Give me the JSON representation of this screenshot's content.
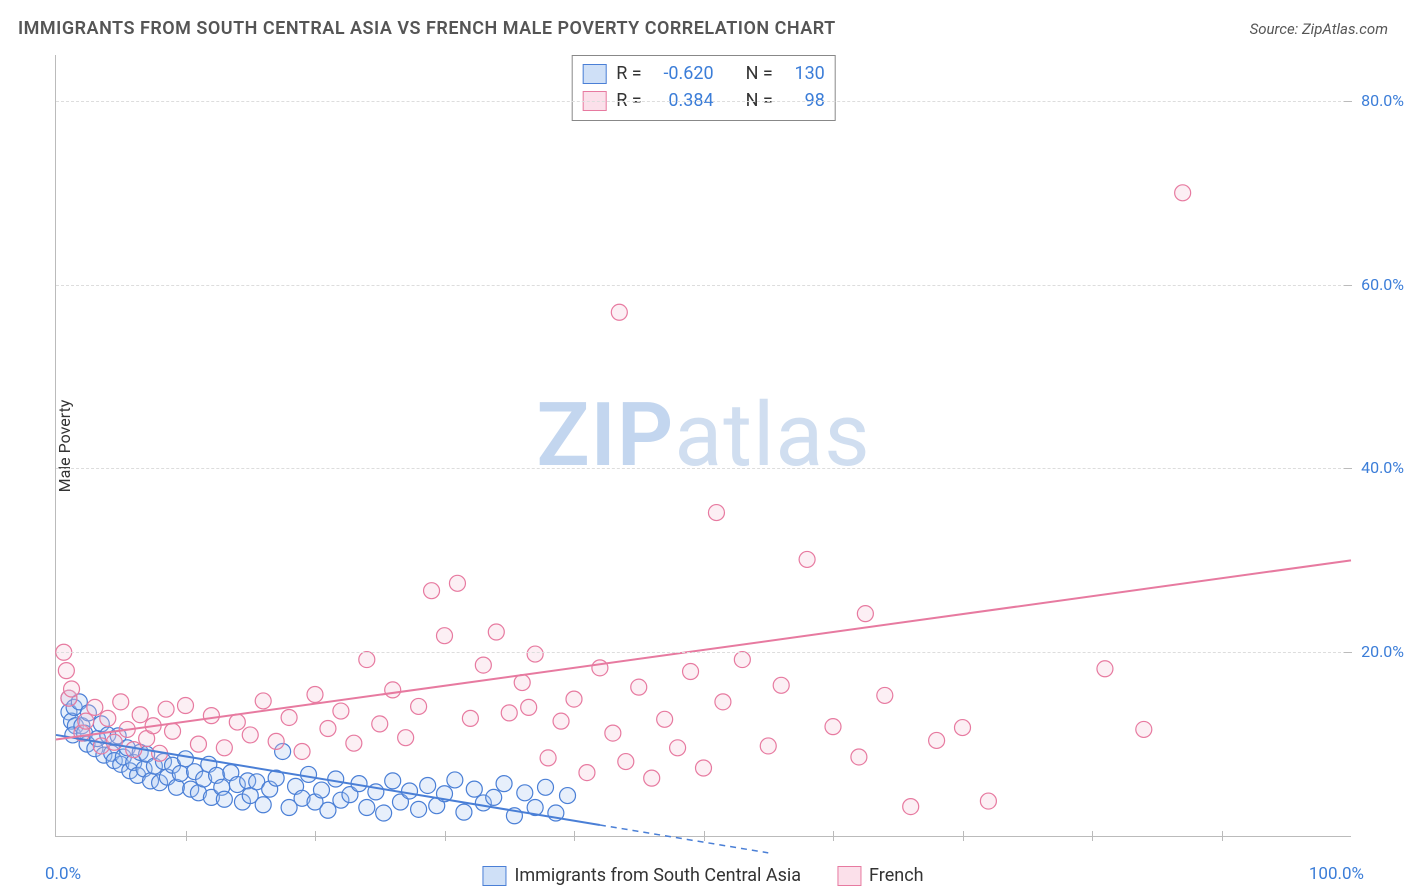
{
  "title": "IMMIGRANTS FROM SOUTH CENTRAL ASIA VS FRENCH MALE POVERTY CORRELATION CHART",
  "source": "Source: ZipAtlas.com",
  "watermark_a": "ZIP",
  "watermark_b": "atlas",
  "ylabel": "Male Poverty",
  "chart": {
    "type": "scatter",
    "xlim": [
      0,
      100
    ],
    "ylim": [
      0,
      85
    ],
    "x_min_label": "0.0%",
    "x_max_label": "100.0%",
    "y_ticks": [
      20,
      40,
      60,
      80
    ],
    "y_tick_labels": [
      "20.0%",
      "40.0%",
      "60.0%",
      "80.0%"
    ],
    "x_tick_step": 10,
    "background_color": "#ffffff",
    "grid_color": "#dddddd",
    "axis_color": "#bbbbbb",
    "tick_label_color": "#3b7dd8",
    "axis_label_color": "#333333",
    "point_radius": 8,
    "point_stroke_width": 1.2,
    "point_fill_opacity": 0.28,
    "trend_line_width": 2,
    "trend_dash_width": 1.5,
    "series": [
      {
        "key": "blue",
        "label": "Immigrants from South Central Asia",
        "color_stroke": "#4a7fd6",
        "color_fill": "#a9c5ef",
        "swatch_border": "#4a7fd6",
        "swatch_fill": "#cfe0f7",
        "R": "-0.620",
        "N": "130",
        "trend": {
          "x1": 0,
          "y1": 11,
          "x2": 42,
          "y2": 1.2,
          "dash_to_x": 55
        },
        "points": [
          [
            1,
            15
          ],
          [
            1,
            13.5
          ],
          [
            1.2,
            12.5
          ],
          [
            1.5,
            12
          ],
          [
            1.3,
            11
          ],
          [
            1.4,
            14
          ],
          [
            1.8,
            14.6
          ],
          [
            2,
            12
          ],
          [
            2.2,
            11.2
          ],
          [
            2.4,
            10
          ],
          [
            2.5,
            13.4
          ],
          [
            3,
            9.5
          ],
          [
            3.2,
            10.6
          ],
          [
            3.5,
            12.2
          ],
          [
            3.7,
            8.8
          ],
          [
            4,
            11
          ],
          [
            4.3,
            9
          ],
          [
            4.5,
            8.2
          ],
          [
            4.8,
            10.9
          ],
          [
            5,
            7.8
          ],
          [
            5.2,
            8.6
          ],
          [
            5.5,
            9.6
          ],
          [
            5.7,
            7.1
          ],
          [
            6,
            8
          ],
          [
            6.3,
            6.6
          ],
          [
            6.5,
            9.1
          ],
          [
            6.8,
            7.3
          ],
          [
            7,
            8.9
          ],
          [
            7.3,
            6
          ],
          [
            7.6,
            7.6
          ],
          [
            8,
            5.8
          ],
          [
            8.3,
            8.1
          ],
          [
            8.6,
            6.4
          ],
          [
            9,
            7.7
          ],
          [
            9.3,
            5.3
          ],
          [
            9.6,
            6.8
          ],
          [
            10,
            8.4
          ],
          [
            10.4,
            5.1
          ],
          [
            10.7,
            7
          ],
          [
            11,
            4.7
          ],
          [
            11.4,
            6.2
          ],
          [
            11.8,
            7.8
          ],
          [
            12,
            4.2
          ],
          [
            12.4,
            6.6
          ],
          [
            12.8,
            5.3
          ],
          [
            13,
            4
          ],
          [
            13.5,
            6.9
          ],
          [
            14,
            5.6
          ],
          [
            14.4,
            3.7
          ],
          [
            14.8,
            6
          ],
          [
            15,
            4.4
          ],
          [
            15.5,
            5.9
          ],
          [
            16,
            3.4
          ],
          [
            16.5,
            5.1
          ],
          [
            17,
            6.3
          ],
          [
            17.5,
            9.2
          ],
          [
            18,
            3.1
          ],
          [
            18.5,
            5.4
          ],
          [
            19,
            4.1
          ],
          [
            19.5,
            6.7
          ],
          [
            20,
            3.7
          ],
          [
            20.5,
            5
          ],
          [
            21,
            2.8
          ],
          [
            21.6,
            6.2
          ],
          [
            22,
            3.9
          ],
          [
            22.7,
            4.5
          ],
          [
            23.4,
            5.7
          ],
          [
            24,
            3.1
          ],
          [
            24.7,
            4.8
          ],
          [
            25.3,
            2.5
          ],
          [
            26,
            6
          ],
          [
            26.6,
            3.7
          ],
          [
            27.3,
            4.9
          ],
          [
            28,
            2.9
          ],
          [
            28.7,
            5.5
          ],
          [
            29.4,
            3.3
          ],
          [
            30,
            4.6
          ],
          [
            30.8,
            6.1
          ],
          [
            31.5,
            2.6
          ],
          [
            32.3,
            5.1
          ],
          [
            33,
            3.6
          ],
          [
            33.8,
            4.2
          ],
          [
            34.6,
            5.7
          ],
          [
            35.4,
            2.2
          ],
          [
            36.2,
            4.7
          ],
          [
            37,
            3.1
          ],
          [
            37.8,
            5.3
          ],
          [
            38.6,
            2.5
          ],
          [
            39.5,
            4.4
          ]
        ]
      },
      {
        "key": "pink",
        "label": "French",
        "color_stroke": "#e77aa0",
        "color_fill": "#f6c6d7",
        "swatch_border": "#e77aa0",
        "swatch_fill": "#fbe0ea",
        "R": "0.384",
        "N": "98",
        "trend": {
          "x1": 0,
          "y1": 10.5,
          "x2": 100,
          "y2": 30
        },
        "points": [
          [
            0.6,
            20
          ],
          [
            0.8,
            18
          ],
          [
            1,
            15
          ],
          [
            1.2,
            16
          ],
          [
            2,
            11.2
          ],
          [
            2.3,
            12.5
          ],
          [
            3,
            14
          ],
          [
            3.5,
            9.8
          ],
          [
            4,
            12.8
          ],
          [
            4.5,
            10.2
          ],
          [
            5,
            14.6
          ],
          [
            5.5,
            11.6
          ],
          [
            6,
            9.4
          ],
          [
            6.5,
            13.2
          ],
          [
            7,
            10.6
          ],
          [
            7.5,
            12
          ],
          [
            8,
            9
          ],
          [
            8.5,
            13.8
          ],
          [
            9,
            11.4
          ],
          [
            10,
            14.2
          ],
          [
            11,
            10
          ],
          [
            12,
            13.1
          ],
          [
            13,
            9.6
          ],
          [
            14,
            12.4
          ],
          [
            15,
            11
          ],
          [
            16,
            14.7
          ],
          [
            17,
            10.3
          ],
          [
            18,
            12.9
          ],
          [
            19,
            9.2
          ],
          [
            20,
            15.4
          ],
          [
            21,
            11.7
          ],
          [
            22,
            13.6
          ],
          [
            23,
            10.1
          ],
          [
            24,
            19.2
          ],
          [
            25,
            12.2
          ],
          [
            26,
            15.9
          ],
          [
            27,
            10.7
          ],
          [
            28,
            14.1
          ],
          [
            29,
            26.7
          ],
          [
            30,
            21.8
          ],
          [
            31,
            27.5
          ],
          [
            32,
            12.8
          ],
          [
            33,
            18.6
          ],
          [
            34,
            22.2
          ],
          [
            35,
            13.4
          ],
          [
            36,
            16.7
          ],
          [
            36.5,
            14
          ],
          [
            37,
            19.8
          ],
          [
            38,
            8.5
          ],
          [
            39,
            12.5
          ],
          [
            40,
            14.9
          ],
          [
            41,
            6.9
          ],
          [
            42,
            18.3
          ],
          [
            43,
            11.2
          ],
          [
            43.5,
            57
          ],
          [
            44,
            8.1
          ],
          [
            45,
            16.2
          ],
          [
            46,
            6.3
          ],
          [
            47,
            12.7
          ],
          [
            48,
            9.6
          ],
          [
            49,
            17.9
          ],
          [
            50,
            7.4
          ],
          [
            51,
            35.2
          ],
          [
            51.5,
            14.6
          ],
          [
            53,
            19.2
          ],
          [
            55,
            9.8
          ],
          [
            56,
            16.4
          ],
          [
            58,
            30.1
          ],
          [
            60,
            11.9
          ],
          [
            62,
            8.6
          ],
          [
            62.5,
            24.2
          ],
          [
            64,
            15.3
          ],
          [
            66,
            3.2
          ],
          [
            68,
            10.4
          ],
          [
            70,
            11.8
          ],
          [
            72,
            3.8
          ],
          [
            81,
            18.2
          ],
          [
            84,
            11.6
          ],
          [
            87,
            70
          ]
        ]
      }
    ]
  },
  "stats_box": {
    "r_label": "R =",
    "n_label": "N ="
  }
}
